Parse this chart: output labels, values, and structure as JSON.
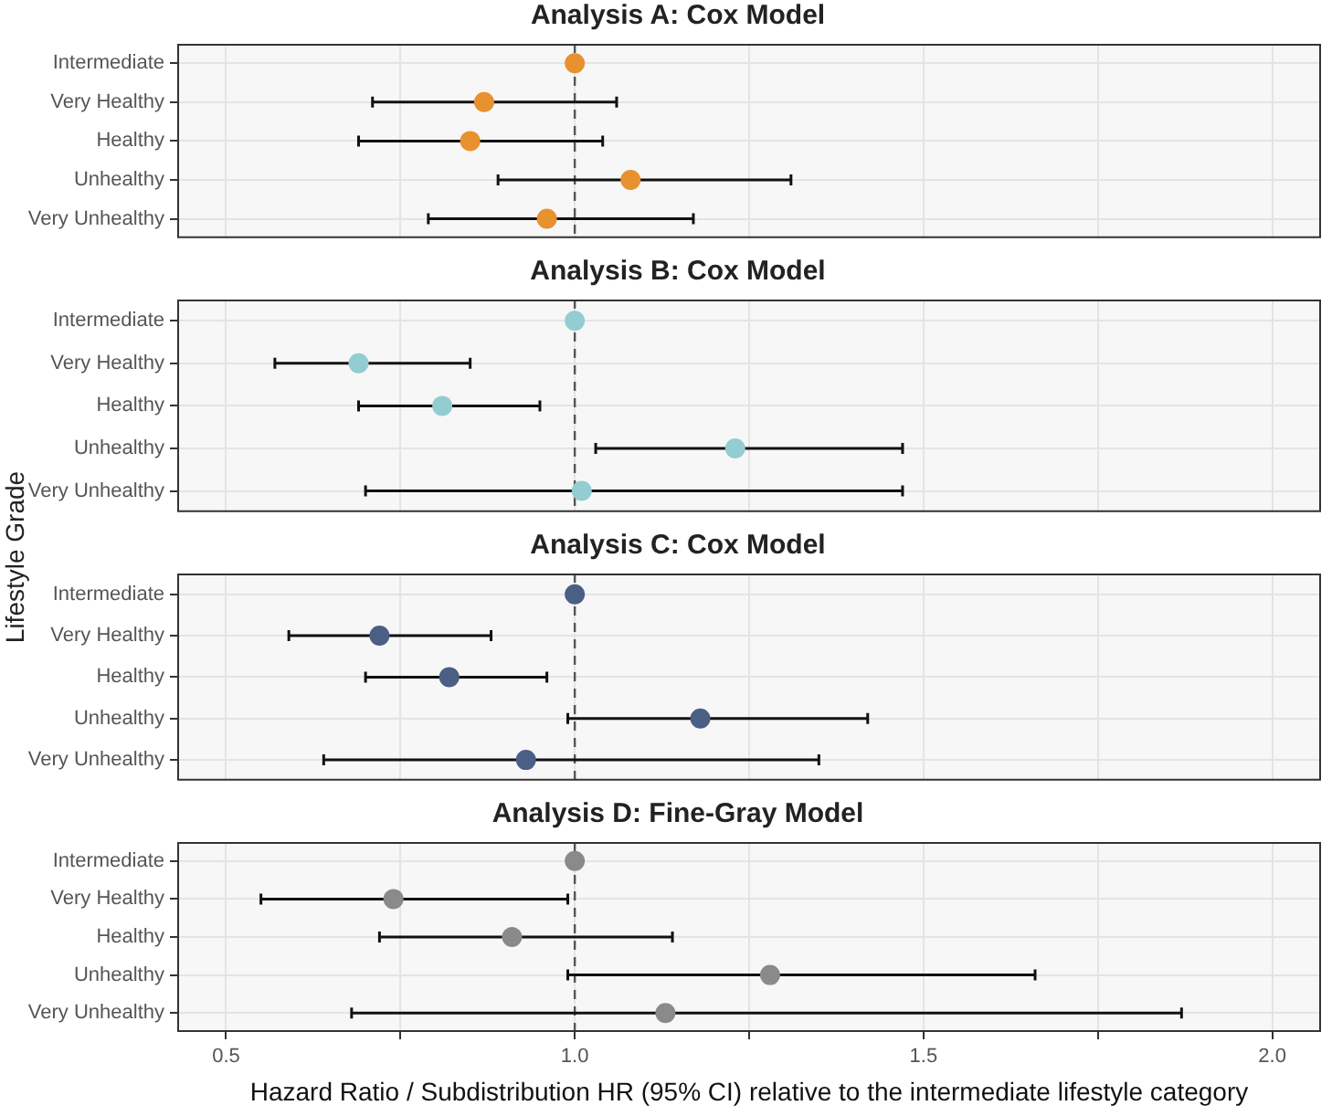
{
  "chart_data": [
    {
      "type": "scatter",
      "title": "Analysis A: Cox Model",
      "orientation": "horizontal",
      "marker": "circle",
      "grid": true,
      "tick_labels": "y",
      "categories": [
        "Intermediate",
        "Very Healthy",
        "Healthy",
        "Unhealthy",
        "Very Unhealthy"
      ],
      "series": [
        {
          "color": "#e8912f",
          "values": [
            1.0,
            0.87,
            0.85,
            1.08,
            0.96
          ],
          "errors": [
            null,
            [
              0.71,
              1.06
            ],
            [
              0.69,
              1.04
            ],
            [
              0.89,
              1.31
            ],
            [
              0.79,
              1.17
            ]
          ]
        }
      ],
      "xlim": [
        0.43,
        2.07
      ],
      "xticks": [
        0.5,
        0.75,
        1,
        1.25,
        1.5,
        1.75,
        2
      ],
      "ref_lines": [
        {
          "axis": "x",
          "value": 1,
          "line_style": "dashed",
          "color": "#555555"
        }
      ]
    },
    {
      "type": "scatter",
      "title": "Analysis B: Cox Model",
      "orientation": "horizontal",
      "marker": "circle",
      "grid": true,
      "tick_labels": "y",
      "categories": [
        "Intermediate",
        "Very Healthy",
        "Healthy",
        "Unhealthy",
        "Very Unhealthy"
      ],
      "series": [
        {
          "color": "#93cdd2",
          "values": [
            1.0,
            0.69,
            0.81,
            1.23,
            1.01
          ],
          "errors": [
            null,
            [
              0.57,
              0.85
            ],
            [
              0.69,
              0.95
            ],
            [
              1.03,
              1.47
            ],
            [
              0.7,
              1.47
            ]
          ]
        }
      ],
      "xlim": [
        0.43,
        2.07
      ],
      "xticks": [
        0.5,
        0.75,
        1,
        1.25,
        1.5,
        1.75,
        2
      ],
      "ref_lines": [
        {
          "axis": "x",
          "value": 1,
          "line_style": "dashed",
          "color": "#555555"
        }
      ]
    },
    {
      "type": "scatter",
      "title": "Analysis C: Cox Model",
      "ylabel": "Lifestyle Grade",
      "orientation": "horizontal",
      "marker": "circle",
      "grid": true,
      "tick_labels": "y",
      "categories": [
        "Intermediate",
        "Very Healthy",
        "Healthy",
        "Unhealthy",
        "Very Unhealthy"
      ],
      "series": [
        {
          "color": "#4b5f85",
          "values": [
            1.0,
            0.72,
            0.82,
            1.18,
            0.93
          ],
          "errors": [
            null,
            [
              0.59,
              0.88
            ],
            [
              0.7,
              0.96
            ],
            [
              0.99,
              1.42
            ],
            [
              0.64,
              1.35
            ]
          ]
        }
      ],
      "xlim": [
        0.43,
        2.07
      ],
      "xticks": [
        0.5,
        0.75,
        1,
        1.25,
        1.5,
        1.75,
        2
      ],
      "ref_lines": [
        {
          "axis": "x",
          "value": 1,
          "line_style": "dashed",
          "color": "#555555"
        }
      ]
    },
    {
      "type": "scatter",
      "title": "Analysis D: Fine-Gray Model",
      "xlabel": "Hazard Ratio / Subdistribution HR (95% CI) relative to the intermediate lifestyle category",
      "orientation": "horizontal",
      "marker": "circle",
      "grid": true,
      "categories": [
        "Intermediate",
        "Very Healthy",
        "Healthy",
        "Unhealthy",
        "Very Unhealthy"
      ],
      "series": [
        {
          "color": "#8a8a8a",
          "values": [
            1.0,
            0.74,
            0.91,
            1.28,
            1.13
          ],
          "errors": [
            null,
            [
              0.55,
              0.99
            ],
            [
              0.72,
              1.14
            ],
            [
              0.99,
              1.66
            ],
            [
              0.68,
              1.87
            ]
          ]
        }
      ],
      "xlim": [
        0.43,
        2.07
      ],
      "xticks": [
        {
          "value": 0.5,
          "label": "0.5"
        },
        {
          "value": 0.75,
          "label": null
        },
        {
          "value": 1,
          "label": "1.0"
        },
        {
          "value": 1.25,
          "label": null
        },
        {
          "value": 1.5,
          "label": "1.5"
        },
        {
          "value": 1.75,
          "label": null
        },
        {
          "value": 2,
          "label": "2.0"
        }
      ],
      "ref_lines": [
        {
          "axis": "x",
          "value": 1,
          "line_style": "dashed",
          "color": "#555555"
        }
      ]
    }
  ]
}
